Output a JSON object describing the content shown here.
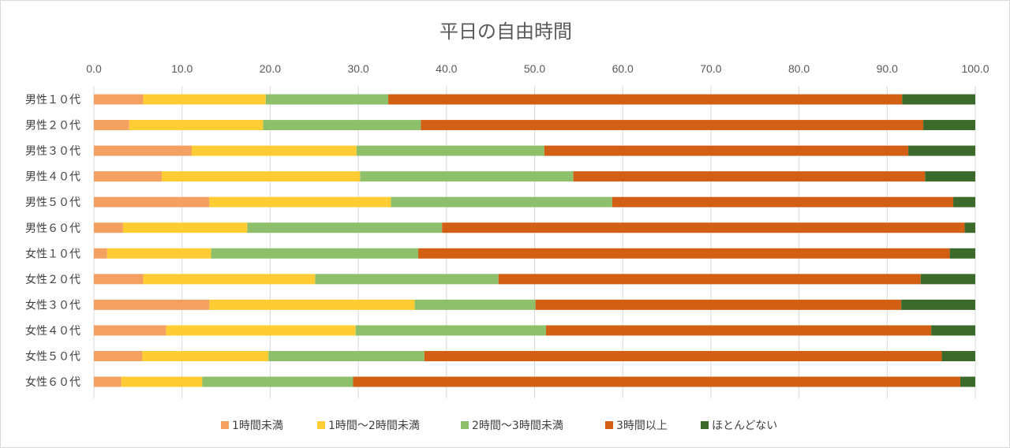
{
  "chart_data": {
    "type": "bar",
    "orientation": "horizontal",
    "stacked": true,
    "title": "平日の自由時間",
    "xlim": [
      0,
      100
    ],
    "x_ticks": [
      "0.0",
      "10.0",
      "20.0",
      "30.0",
      "40.0",
      "50.0",
      "60.0",
      "70.0",
      "80.0",
      "90.0",
      "100.0"
    ],
    "x_axis_position": "top",
    "grid": true,
    "legend_position": "bottom",
    "categories": [
      "男性１０代",
      "男性２０代",
      "男性３０代",
      "男性４０代",
      "男性５０代",
      "男性６０代",
      "女性１０代",
      "女性２０代",
      "女性３０代",
      "女性４０代",
      "女性５０代",
      "女性６０代"
    ],
    "series": [
      {
        "name": "1時間未満",
        "color": "#f4a060",
        "values": [
          5.6,
          4.0,
          11.1,
          7.7,
          13.1,
          3.3,
          1.5,
          5.6,
          13.1,
          8.2,
          5.5,
          3.1
        ]
      },
      {
        "name": "1時間～2時間未満",
        "color": "#ffcc33",
        "values": [
          13.9,
          15.2,
          18.7,
          22.5,
          20.6,
          14.1,
          11.8,
          19.5,
          23.3,
          21.5,
          14.3,
          9.2
        ]
      },
      {
        "name": "2時間～3時間未満",
        "color": "#8ec06c",
        "values": [
          13.9,
          17.9,
          21.3,
          24.2,
          25.1,
          22.1,
          23.5,
          20.8,
          13.7,
          21.6,
          17.7,
          17.1
        ]
      },
      {
        "name": "3時間以上",
        "color": "#d35f15",
        "values": [
          58.3,
          57.0,
          41.3,
          39.9,
          38.7,
          59.3,
          60.3,
          47.9,
          41.5,
          43.7,
          58.7,
          68.9
        ]
      },
      {
        "name": "ほとんどない",
        "color": "#3c6a2a",
        "values": [
          8.3,
          5.9,
          7.6,
          5.7,
          2.5,
          1.2,
          2.9,
          6.2,
          8.4,
          5.0,
          3.8,
          1.7
        ]
      }
    ]
  }
}
